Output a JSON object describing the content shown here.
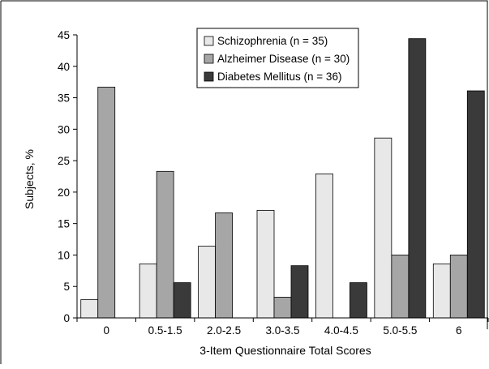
{
  "chart_data": {
    "type": "bar",
    "categories": [
      "0",
      "0.5-1.5",
      "2.0-2.5",
      "3.0-3.5",
      "4.0-4.5",
      "5.0-5.5",
      "6"
    ],
    "series": [
      {
        "name": "Schizophrenia (n = 35)",
        "color": "#e8e8e8",
        "values": [
          2.9,
          8.6,
          11.4,
          17.1,
          22.9,
          28.6,
          8.6
        ]
      },
      {
        "name": "Alzheimer Disease (n = 30)",
        "color": "#a6a6a6",
        "values": [
          36.7,
          23.3,
          16.7,
          3.3,
          0,
          10.0,
          10.0
        ]
      },
      {
        "name": "Diabetes Mellitus (n = 36)",
        "color": "#3a3a3a",
        "values": [
          0,
          5.6,
          0,
          8.3,
          5.6,
          44.4,
          36.1
        ]
      }
    ],
    "xlabel": "3-Item Questionnaire Total Scores",
    "ylabel": "Subjects, %",
    "ylim": [
      0,
      45
    ],
    "yticks": [
      0,
      5,
      10,
      15,
      20,
      25,
      30,
      35,
      40,
      45
    ],
    "grid": false,
    "legend_position": "top-center"
  }
}
